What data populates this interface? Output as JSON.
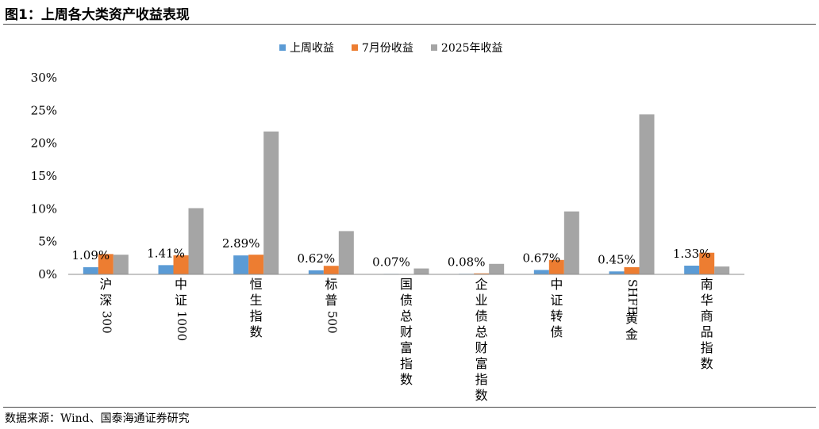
{
  "title": "图1：上周各大类资产收益表现",
  "source": "数据来源：Wind、国泰海通证券研究",
  "chart_data": {
    "type": "bar",
    "categories": [
      "沪深300",
      "中证1000",
      "恒生指数",
      "标普500",
      "国债总财富指数",
      "企业债总财富指数",
      "中证转债",
      "SHFE黄金",
      "南华商品指数"
    ],
    "category_label_lines": [
      [
        "沪",
        "深",
        "300"
      ],
      [
        "中",
        "证",
        "1000"
      ],
      [
        "恒",
        "生",
        "指",
        "数"
      ],
      [
        "标",
        "普",
        "500"
      ],
      [
        "国",
        "债",
        "总",
        "财",
        "富",
        "指",
        "数"
      ],
      [
        "企",
        "业",
        "债",
        "总",
        "财",
        "富",
        "指",
        "数"
      ],
      [
        "中",
        "证",
        "转",
        "债"
      ],
      [
        "SHFE",
        "黄",
        "金"
      ],
      [
        "南",
        "华",
        "商",
        "品",
        "指",
        "数"
      ]
    ],
    "series": [
      {
        "name": "上周收益",
        "color": "#5b9bd5",
        "values": [
          1.09,
          1.41,
          2.89,
          0.62,
          0.07,
          0.08,
          0.67,
          0.45,
          1.33
        ]
      },
      {
        "name": "7月份收益",
        "color": "#ed7d31",
        "values": [
          3.1,
          2.9,
          3.0,
          1.3,
          0.0,
          0.15,
          2.2,
          1.1,
          3.3
        ]
      },
      {
        "name": "2025年收益",
        "color": "#a5a5a5",
        "values": [
          3.0,
          10.1,
          21.8,
          6.6,
          0.9,
          1.6,
          9.6,
          24.4,
          1.2
        ]
      }
    ],
    "data_labels": [
      "1.09%",
      "1.41%",
      "2.89%",
      "0.62%",
      "0.07%",
      "0.08%",
      "0.67%",
      "0.45%",
      "1.33%"
    ],
    "ylim": [
      0,
      30
    ],
    "yticks": [
      "0%",
      "5%",
      "10%",
      "15%",
      "20%",
      "25%",
      "30%"
    ],
    "ytick_values": [
      0,
      5,
      10,
      15,
      20,
      25,
      30
    ],
    "grid": false,
    "legend_position": "top"
  }
}
